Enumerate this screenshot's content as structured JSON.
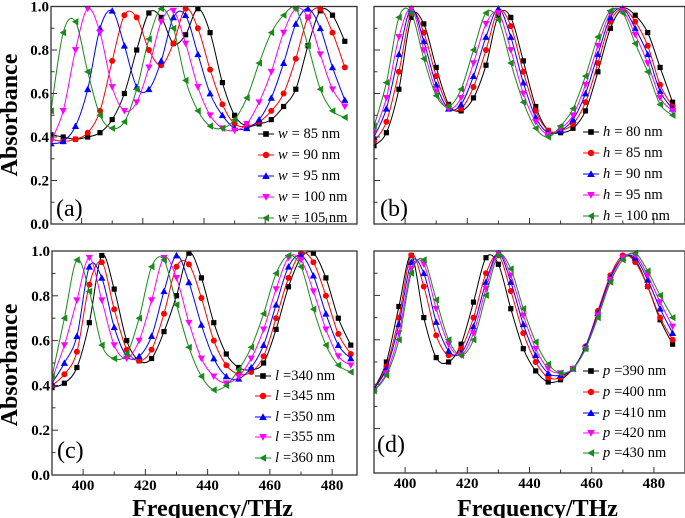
{
  "colors": {
    "black": "#000000",
    "red": "#ff0000",
    "blue": "#0000ff",
    "magenta": "#ff00ff",
    "green": "#1a8a1a"
  },
  "chart_data": [
    {
      "type": "line",
      "panel_label": "(a)",
      "ylabel": "Absorbance",
      "xlabel": "",
      "xlim": [
        390,
        490
      ],
      "ylim": [
        0,
        1
      ],
      "yticks": [
        "0.0",
        "0.2",
        "0.4",
        "0.6",
        "0.8",
        "1.0"
      ],
      "xticks": [],
      "legend": "bottom-right",
      "x": [
        390,
        394,
        398,
        402,
        406,
        410,
        414,
        418,
        422,
        426,
        430,
        434,
        438,
        442,
        446,
        450,
        454,
        458,
        462,
        466,
        470,
        474,
        478,
        482,
        486
      ],
      "series": [
        {
          "var": "w",
          "name": "= 85 nm",
          "color": "#000000",
          "marker": "square",
          "values": [
            0.41,
            0.4,
            0.39,
            0.4,
            0.42,
            0.48,
            0.6,
            0.8,
            0.97,
            0.95,
            0.83,
            0.87,
            0.99,
            0.88,
            0.65,
            0.5,
            0.45,
            0.46,
            0.48,
            0.54,
            0.62,
            0.82,
            0.98,
            0.96,
            0.84
          ]
        },
        {
          "var": "w",
          "name": "= 90 nm",
          "color": "#ff0000",
          "marker": "circle",
          "values": [
            0.39,
            0.38,
            0.39,
            0.42,
            0.52,
            0.75,
            0.96,
            0.95,
            0.8,
            0.73,
            0.83,
            0.99,
            0.9,
            0.71,
            0.55,
            0.46,
            0.45,
            0.47,
            0.52,
            0.6,
            0.76,
            0.95,
            0.99,
            0.88,
            0.72
          ]
        },
        {
          "var": "w",
          "name": "= 95 nm",
          "color": "#0000ff",
          "marker": "triangle-up",
          "values": [
            0.37,
            0.38,
            0.45,
            0.62,
            0.9,
            0.98,
            0.82,
            0.63,
            0.62,
            0.75,
            0.95,
            0.96,
            0.78,
            0.6,
            0.5,
            0.44,
            0.44,
            0.48,
            0.58,
            0.74,
            0.92,
            0.99,
            0.9,
            0.72,
            0.57
          ]
        },
        {
          "var": "w",
          "name": "= 100 nm",
          "color": "#ff00ff",
          "marker": "triangle-down",
          "values": [
            0.38,
            0.52,
            0.8,
            0.99,
            0.88,
            0.63,
            0.52,
            0.56,
            0.72,
            0.93,
            0.98,
            0.83,
            0.63,
            0.5,
            0.44,
            0.43,
            0.46,
            0.56,
            0.7,
            0.88,
            0.99,
            0.95,
            0.78,
            0.62,
            0.54
          ]
        },
        {
          "var": "w",
          "name": "= 105 nm",
          "color": "#1a8a1a",
          "marker": "triangle-left",
          "values": [
            0.52,
            0.88,
            0.93,
            0.7,
            0.5,
            0.44,
            0.47,
            0.62,
            0.85,
            0.99,
            0.9,
            0.66,
            0.52,
            0.45,
            0.44,
            0.48,
            0.58,
            0.74,
            0.88,
            0.96,
            0.99,
            0.82,
            0.62,
            0.52,
            0.49
          ]
        }
      ]
    },
    {
      "type": "line",
      "panel_label": "(b)",
      "ylabel": "",
      "xlabel": "",
      "xlim": [
        390,
        490
      ],
      "ylim": [
        0,
        1
      ],
      "yticks": [],
      "xticks": [],
      "legend": "bottom-right",
      "x": [
        390,
        394,
        398,
        402,
        406,
        410,
        414,
        418,
        422,
        426,
        430,
        434,
        438,
        442,
        446,
        450,
        454,
        458,
        462,
        466,
        470,
        474,
        478,
        482,
        486
      ],
      "series": [
        {
          "var": "h",
          "name": "= 80 nm",
          "color": "#000000",
          "marker": "square",
          "values": [
            0.36,
            0.42,
            0.62,
            0.95,
            0.92,
            0.72,
            0.55,
            0.52,
            0.58,
            0.73,
            0.96,
            0.95,
            0.75,
            0.54,
            0.43,
            0.42,
            0.44,
            0.52,
            0.7,
            0.9,
            0.99,
            0.96,
            0.88,
            0.72,
            0.56
          ]
        },
        {
          "var": "h",
          "name": "= 85 nm",
          "color": "#ff0000",
          "marker": "circle",
          "values": [
            0.38,
            0.47,
            0.7,
            0.97,
            0.88,
            0.68,
            0.54,
            0.53,
            0.63,
            0.8,
            0.98,
            0.91,
            0.7,
            0.52,
            0.43,
            0.43,
            0.46,
            0.56,
            0.74,
            0.93,
            0.99,
            0.93,
            0.82,
            0.64,
            0.54
          ]
        },
        {
          "var": "h",
          "name": "= 90 nm",
          "color": "#0000ff",
          "marker": "triangle-up",
          "values": [
            0.4,
            0.53,
            0.78,
            0.99,
            0.84,
            0.64,
            0.53,
            0.55,
            0.68,
            0.86,
            0.99,
            0.86,
            0.65,
            0.49,
            0.42,
            0.43,
            0.48,
            0.6,
            0.78,
            0.95,
            0.99,
            0.9,
            0.78,
            0.61,
            0.53
          ]
        },
        {
          "var": "h",
          "name": "= 95 nm",
          "color": "#ff00ff",
          "marker": "triangle-down",
          "values": [
            0.42,
            0.58,
            0.86,
            0.99,
            0.8,
            0.61,
            0.53,
            0.58,
            0.74,
            0.92,
            0.97,
            0.8,
            0.6,
            0.47,
            0.41,
            0.44,
            0.5,
            0.64,
            0.82,
            0.97,
            0.98,
            0.87,
            0.74,
            0.58,
            0.52
          ]
        },
        {
          "var": "h",
          "name": "= 100 nm",
          "color": "#1a8a1a",
          "marker": "triangle-left",
          "values": [
            0.45,
            0.65,
            0.95,
            0.97,
            0.76,
            0.59,
            0.54,
            0.62,
            0.8,
            0.97,
            0.94,
            0.74,
            0.56,
            0.44,
            0.4,
            0.45,
            0.53,
            0.68,
            0.86,
            0.98,
            0.97,
            0.83,
            0.7,
            0.55,
            0.5
          ]
        }
      ]
    },
    {
      "type": "line",
      "panel_label": "(c)",
      "ylabel": "Absorbance",
      "xlabel": "Frequency/THz",
      "xlim": [
        390,
        488
      ],
      "ylim": [
        0,
        1
      ],
      "yticks": [
        "0.0",
        "0.2",
        "0.4",
        "0.6",
        "0.8",
        "1.0"
      ],
      "xticks": [
        "400",
        "420",
        "440",
        "460",
        "480"
      ],
      "legend": "bottom-right",
      "x": [
        390,
        394,
        398,
        402,
        406,
        410,
        414,
        418,
        422,
        426,
        430,
        434,
        438,
        442,
        446,
        450,
        454,
        458,
        462,
        466,
        470,
        474,
        478,
        482,
        486
      ],
      "series": [
        {
          "var": "l",
          "name": "=340 nm",
          "color": "#000000",
          "marker": "square",
          "values": [
            0.39,
            0.41,
            0.48,
            0.68,
            0.98,
            0.83,
            0.6,
            0.51,
            0.52,
            0.64,
            0.8,
            0.99,
            0.88,
            0.68,
            0.54,
            0.48,
            0.47,
            0.5,
            0.65,
            0.84,
            0.97,
            0.99,
            0.88,
            0.7,
            0.58
          ]
        },
        {
          "var": "l",
          "name": "=345 nm",
          "color": "#ff0000",
          "marker": "circle",
          "values": [
            0.4,
            0.45,
            0.55,
            0.85,
            0.95,
            0.74,
            0.56,
            0.51,
            0.56,
            0.72,
            0.93,
            0.94,
            0.79,
            0.6,
            0.49,
            0.45,
            0.46,
            0.53,
            0.7,
            0.88,
            0.99,
            0.95,
            0.8,
            0.63,
            0.54
          ]
        },
        {
          "var": "l",
          "name": "=350 nm",
          "color": "#0000ff",
          "marker": "triangle-up",
          "values": [
            0.41,
            0.5,
            0.62,
            0.93,
            0.88,
            0.66,
            0.53,
            0.53,
            0.62,
            0.82,
            0.98,
            0.86,
            0.67,
            0.52,
            0.44,
            0.43,
            0.48,
            0.58,
            0.76,
            0.93,
            0.98,
            0.89,
            0.72,
            0.58,
            0.52
          ]
        },
        {
          "var": "l",
          "name": "=355 nm",
          "color": "#ff00ff",
          "marker": "triangle-down",
          "values": [
            0.43,
            0.58,
            0.78,
            0.97,
            0.78,
            0.58,
            0.52,
            0.6,
            0.78,
            0.97,
            0.88,
            0.68,
            0.52,
            0.44,
            0.41,
            0.44,
            0.52,
            0.65,
            0.83,
            0.97,
            0.96,
            0.82,
            0.65,
            0.53,
            0.49
          ]
        },
        {
          "var": "l",
          "name": "=360 nm",
          "color": "#1a8a1a",
          "marker": "triangle-left",
          "values": [
            0.44,
            0.7,
            0.96,
            0.82,
            0.58,
            0.52,
            0.54,
            0.7,
            0.93,
            0.96,
            0.76,
            0.57,
            0.44,
            0.38,
            0.4,
            0.47,
            0.57,
            0.72,
            0.9,
            0.98,
            0.93,
            0.74,
            0.58,
            0.49,
            0.46
          ]
        }
      ]
    },
    {
      "type": "line",
      "panel_label": "(d)",
      "ylabel": "",
      "xlabel": "Frequency/THz",
      "xlim": [
        390,
        490
      ],
      "ylim": [
        0,
        1
      ],
      "yticks": [],
      "xticks": [
        "400",
        "420",
        "440",
        "460",
        "480"
      ],
      "legend": "bottom-right",
      "x": [
        390,
        394,
        398,
        402,
        406,
        410,
        414,
        418,
        422,
        426,
        430,
        434,
        438,
        442,
        446,
        450,
        454,
        458,
        462,
        466,
        470,
        474,
        478,
        482,
        486
      ],
      "series": [
        {
          "var": "p",
          "name": "=390 nm",
          "color": "#000000",
          "marker": "square",
          "values": [
            0.38,
            0.5,
            0.75,
            0.98,
            0.7,
            0.52,
            0.5,
            0.58,
            0.77,
            0.97,
            0.94,
            0.74,
            0.56,
            0.46,
            0.41,
            0.42,
            0.47,
            0.56,
            0.72,
            0.88,
            0.97,
            0.96,
            0.84,
            0.69,
            0.58
          ]
        },
        {
          "var": "p",
          "name": "=400 nm",
          "color": "#ff0000",
          "marker": "circle",
          "values": [
            0.38,
            0.48,
            0.7,
            0.98,
            0.84,
            0.62,
            0.53,
            0.56,
            0.7,
            0.9,
            0.98,
            0.82,
            0.63,
            0.5,
            0.43,
            0.43,
            0.47,
            0.57,
            0.73,
            0.89,
            0.98,
            0.95,
            0.84,
            0.7,
            0.6
          ]
        },
        {
          "var": "p",
          "name": "=410 nm",
          "color": "#0000ff",
          "marker": "triangle-up",
          "values": [
            0.38,
            0.47,
            0.67,
            0.95,
            0.9,
            0.68,
            0.55,
            0.54,
            0.66,
            0.86,
            0.99,
            0.86,
            0.67,
            0.53,
            0.45,
            0.44,
            0.47,
            0.57,
            0.72,
            0.88,
            0.97,
            0.97,
            0.87,
            0.74,
            0.63
          ]
        },
        {
          "var": "p",
          "name": "=420 nm",
          "color": "#ff00ff",
          "marker": "triangle-down",
          "values": [
            0.37,
            0.45,
            0.63,
            0.92,
            0.94,
            0.74,
            0.58,
            0.53,
            0.63,
            0.83,
            0.99,
            0.89,
            0.71,
            0.56,
            0.47,
            0.45,
            0.47,
            0.56,
            0.71,
            0.87,
            0.97,
            0.98,
            0.89,
            0.77,
            0.66
          ]
        },
        {
          "var": "p",
          "name": "=430 nm",
          "color": "#1a8a1a",
          "marker": "triangle-left",
          "values": [
            0.37,
            0.44,
            0.6,
            0.9,
            0.96,
            0.78,
            0.6,
            0.53,
            0.6,
            0.8,
            0.98,
            0.92,
            0.74,
            0.59,
            0.49,
            0.45,
            0.47,
            0.56,
            0.7,
            0.86,
            0.96,
            0.99,
            0.91,
            0.8,
            0.7
          ]
        }
      ]
    }
  ]
}
